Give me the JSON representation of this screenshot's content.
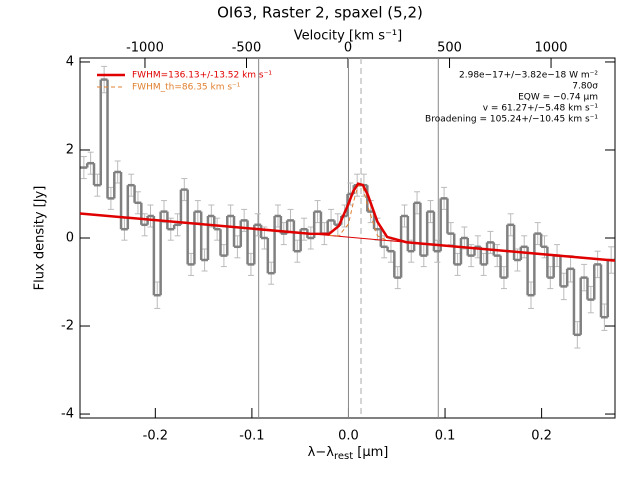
{
  "chart_data": {
    "type": "line",
    "title": "OI63, Raster 2, spaxel (5,2)",
    "x2label": "Velocity [km s⁻¹]",
    "xlabel_parts": [
      "λ−λ",
      "rest",
      " [μm]"
    ],
    "ylabel": "Flux density [Jy]",
    "xlim": [
      -0.278,
      0.276
    ],
    "xticks": [
      -0.2,
      -0.1,
      {
        "value": 0,
        "label": "0.0"
      },
      0.1,
      0.2
    ],
    "x2lim": [
      -1320,
      1315
    ],
    "x2ticks": [
      -1000,
      -500,
      0,
      500,
      1000
    ],
    "ylim": [
      -4.09,
      4.09
    ],
    "yticks": [
      -4,
      -2,
      0,
      2,
      4
    ],
    "vlines": [
      -0.093,
      0,
      0.093
    ],
    "dashed_vline": 0.013,
    "legend": "upper left",
    "annotations": [
      "2.98e−17+/−3.82e−18 W m⁻²",
      "7.80σ",
      "EQW = −0.74 μm",
      "v = 61.27+/−5.48 km s⁻¹",
      "Broadening = 105.24+/−10.45 km s⁻¹"
    ],
    "series": [
      {
        "color": "#808080",
        "style": "step",
        "x": [
          -0.274,
          -0.267,
          -0.26,
          -0.253,
          -0.246,
          -0.239,
          -0.232,
          -0.225,
          -0.218,
          -0.211,
          -0.205,
          -0.198,
          -0.191,
          -0.184,
          -0.177,
          -0.17,
          -0.163,
          -0.156,
          -0.149,
          -0.142,
          -0.136,
          -0.129,
          -0.122,
          -0.115,
          -0.108,
          -0.101,
          -0.094,
          -0.087,
          -0.08,
          -0.073,
          -0.067,
          -0.06,
          -0.053,
          -0.046,
          -0.039,
          -0.032,
          -0.025,
          -0.018,
          -0.011,
          -0.004,
          0.002,
          0.009,
          0.016,
          0.023,
          0.03,
          0.037,
          0.044,
          0.051,
          0.058,
          0.065,
          0.071,
          0.078,
          0.085,
          0.092,
          0.099,
          0.106,
          0.113,
          0.12,
          0.127,
          0.134,
          0.14,
          0.147,
          0.154,
          0.161,
          0.168,
          0.175,
          0.182,
          0.189,
          0.196,
          0.203,
          0.209,
          0.216,
          0.223,
          0.23,
          0.237,
          0.244,
          0.251,
          0.258,
          0.265,
          0.272
        ],
        "values": [
          1.6,
          1.7,
          1.2,
          3.6,
          0.9,
          1.5,
          0.2,
          1.2,
          0.8,
          0.3,
          0.5,
          -1.3,
          0.6,
          0.2,
          0.3,
          1.1,
          -0.6,
          0.6,
          -0.5,
          0.5,
          0.2,
          -0.4,
          0.5,
          -0.2,
          0.4,
          -0.6,
          0.3,
          0.0,
          -0.8,
          0.5,
          0.1,
          0.4,
          -0.3,
          0.2,
          0.0,
          0.6,
          0.1,
          0.4,
          0.3,
          0.5,
          1.0,
          1.2,
          1.2,
          0.6,
          0.2,
          -0.2,
          -0.3,
          -0.9,
          0.5,
          -0.3,
          0.8,
          -0.4,
          0.6,
          -0.3,
          0.9,
          0.1,
          -0.6,
          0.0,
          -0.4,
          -0.2,
          -0.6,
          -0.1,
          -0.4,
          -0.9,
          0.3,
          -0.5,
          -0.2,
          -1.3,
          0.1,
          -0.2,
          -0.9,
          -0.4,
          -1.1,
          -0.7,
          -2.2,
          -0.9,
          -1.4,
          -0.6,
          -1.8,
          -0.5
        ],
        "errors": [
          0.25,
          0.25,
          0.25,
          0.3,
          0.25,
          0.25,
          0.25,
          0.25,
          0.25,
          0.25,
          0.25,
          0.3,
          0.25,
          0.25,
          0.25,
          0.25,
          0.25,
          0.25,
          0.25,
          0.25,
          0.25,
          0.25,
          0.25,
          0.25,
          0.25,
          0.25,
          0.25,
          0.25,
          0.25,
          0.25,
          0.25,
          0.25,
          0.25,
          0.25,
          0.25,
          0.25,
          0.25,
          0.25,
          0.25,
          0.25,
          0.25,
          0.25,
          0.25,
          0.25,
          0.25,
          0.25,
          0.25,
          0.25,
          0.25,
          0.25,
          0.25,
          0.25,
          0.25,
          0.25,
          0.25,
          0.25,
          0.25,
          0.25,
          0.25,
          0.25,
          0.25,
          0.25,
          0.25,
          0.25,
          0.25,
          0.25,
          0.25,
          0.3,
          0.25,
          0.25,
          0.25,
          0.25,
          0.3,
          0.3,
          0.3,
          0.3,
          0.3,
          0.3,
          0.3,
          0.3
        ]
      },
      {
        "color": "#e00000",
        "style": "thin",
        "x": [
          -0.278,
          0.276
        ],
        "values": [
          0.557,
          -0.513
        ]
      },
      {
        "name": "FWHM_th=86.35 km s⁻¹",
        "color": "#e08030",
        "style": "dashed",
        "x": [
          -0.02,
          -0.01,
          0,
          0.005,
          0.01,
          0.015,
          0.02,
          0.03,
          0.04
        ],
        "values": [
          0.059,
          0.05,
          0.32,
          0.8,
          1.2,
          1.15,
          0.72,
          0.05,
          -0.057
        ]
      },
      {
        "name": "FWHM=136.13+/-13.52 km s⁻¹",
        "color": "#e00000",
        "style": "thick",
        "x": [
          -0.278,
          -0.04,
          -0.02,
          -0.01,
          0,
          0.005,
          0.01,
          0.015,
          0.02,
          0.03,
          0.04,
          0.06,
          0.276
        ],
        "values": [
          0.557,
          0.097,
          0.094,
          0.272,
          0.778,
          1.065,
          1.234,
          1.202,
          0.982,
          0.368,
          0.025,
          -0.096,
          -0.513
        ]
      }
    ]
  }
}
